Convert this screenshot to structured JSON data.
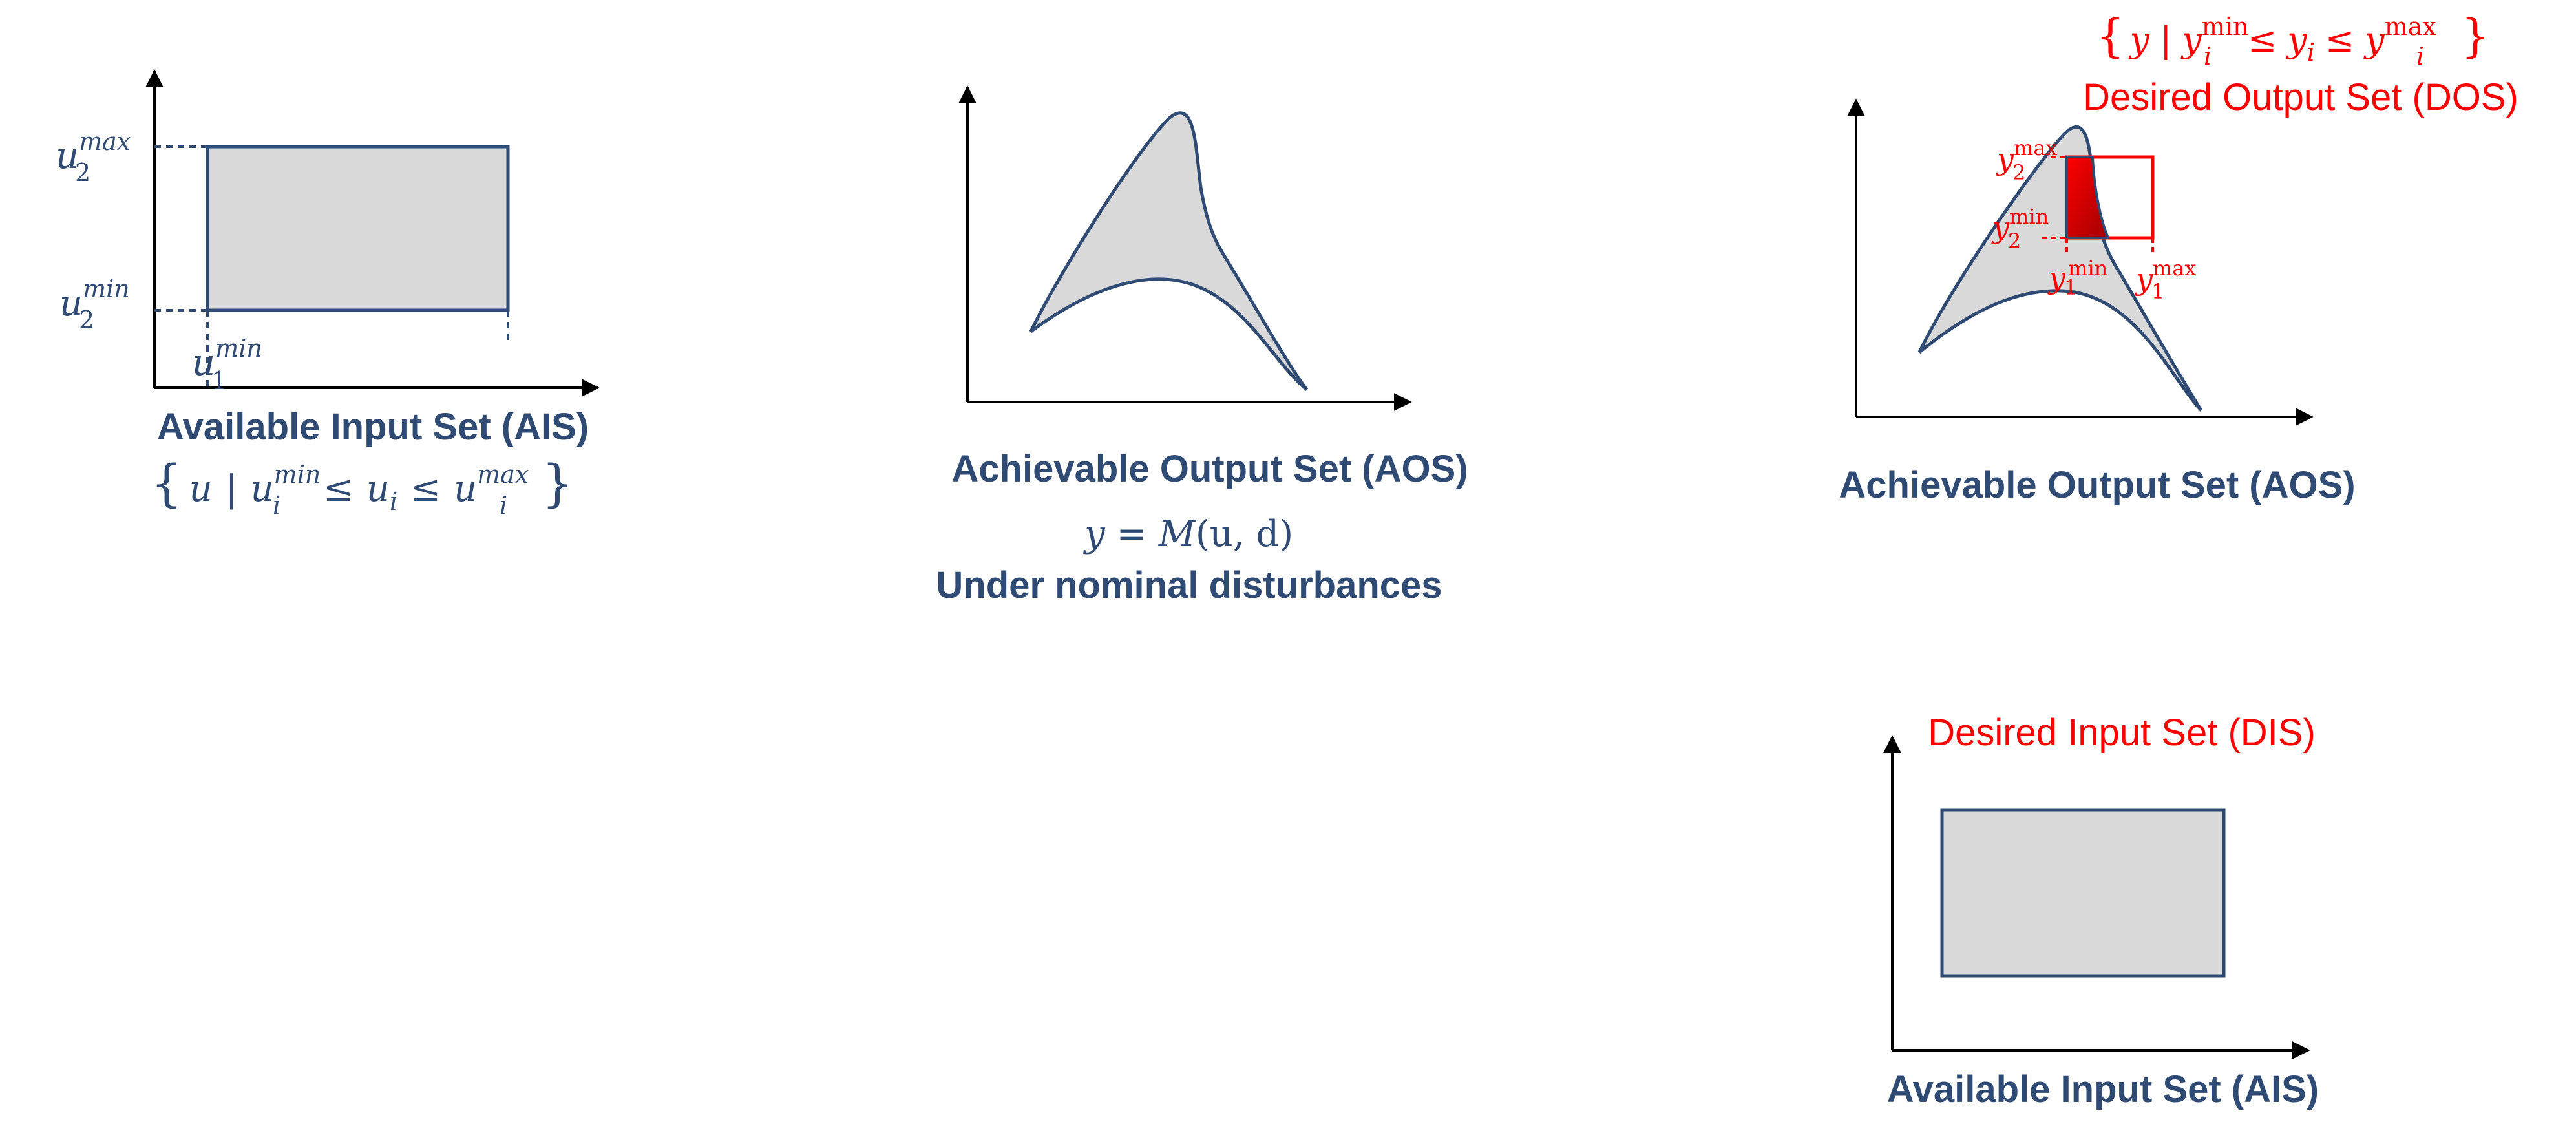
{
  "colors": {
    "navy": "#2f4a73",
    "fill": "#d9d9d9",
    "red": "#ff0000",
    "dark_red": "#c00000",
    "axis": "#000000"
  },
  "panel1": {
    "caption": "Available Input Set (AIS)",
    "set_open": "{",
    "set_u": "u",
    "set_bar": "|",
    "set_u1": "u",
    "set_i1": "i",
    "set_min": "min",
    "set_le1": "≤",
    "set_u2": "u",
    "set_i2": "i",
    "set_le2": "≤",
    "set_u3": "u",
    "set_i3": "i",
    "set_max": "max",
    "set_close": "}",
    "u2max_base": "u",
    "u2max_sub": "2",
    "u2max_sup": "max",
    "u2min_base": "u",
    "u2min_sub": "2",
    "u2min_sup": "min",
    "u1min_base": "u",
    "u1min_sub": "1",
    "u1min_sup": "min"
  },
  "panel2": {
    "caption": "Achievable Output Set (AOS)",
    "model_lhs": "y",
    "model_eq": "=",
    "model_M": "M",
    "model_args": "(u, d)",
    "subcaption": "Under nominal disturbances"
  },
  "panel3": {
    "caption": "Achievable Output Set (AOS)",
    "dos_title": "Desired Output Set (DOS)",
    "set_open": "{",
    "set_y": "y",
    "set_bar": "|",
    "set_y1": "y",
    "set_i1": "i",
    "set_min": "min",
    "set_le1": "≤",
    "set_y2": "y",
    "set_i2": "i",
    "set_le2": "≤",
    "set_y3": "y",
    "set_i3": "i",
    "set_max": "max",
    "set_close": "}",
    "y2max_base": "y",
    "y2max_sub": "2",
    "y2max_sup": "max",
    "y2min_base": "y",
    "y2min_sub": "2",
    "y2min_sup": "min",
    "y1min_base": "y",
    "y1min_sub": "1",
    "y1min_sup": "min",
    "y1max_base": "y",
    "y1max_sub": "1",
    "y1max_sup": "max"
  },
  "panel4": {
    "dis_title": "Desired Input Set (DIS)",
    "caption": "Available Input Set (AIS)"
  }
}
